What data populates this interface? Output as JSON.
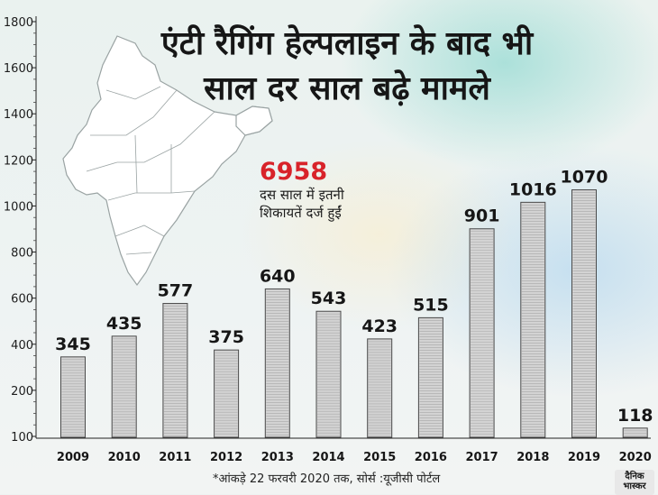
{
  "title": {
    "line1": "एंटी रैगिंग हेल्पलाइन के बाद भी",
    "line2": "साल दर साल बढ़े मामले"
  },
  "highlight": {
    "value": "6958",
    "caption": "दस साल में इतनी शिकायतें दर्ज हुईं"
  },
  "footnote": "*आंकड़े 22 फरवरी 2020 तक, सोर्स :यूजीसी पोर्टल",
  "logo": {
    "line1": "दैनिक",
    "line2": "भास्कर"
  },
  "colors": {
    "bar_fill": "#d3d3d3",
    "bar_stroke": "#4a4a4a",
    "highlight": "#d8232a",
    "map_fill": "#ffffff",
    "map_stroke": "#9aa3a3"
  },
  "chart_data": {
    "type": "bar",
    "title": "एंटी रैगिंग हेल्पलाइन के बाद भी साल दर साल बढ़े मामले",
    "xlabel": "",
    "ylabel": "",
    "categories": [
      "2009",
      "2010",
      "2011",
      "2012",
      "2013",
      "2014",
      "2015",
      "2016",
      "2017",
      "2018",
      "2019",
      "2020"
    ],
    "values": [
      345,
      435,
      577,
      375,
      640,
      543,
      423,
      515,
      901,
      1016,
      1070,
      118
    ],
    "y_ticks": [
      100,
      200,
      400,
      600,
      800,
      1000,
      1200,
      1400,
      1600,
      1800
    ],
    "ylim": [
      100,
      1800
    ],
    "grid": false
  }
}
